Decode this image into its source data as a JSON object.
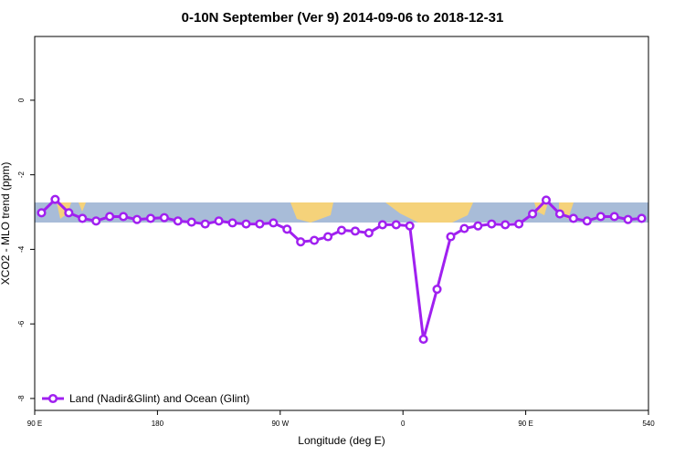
{
  "chart_data": {
    "type": "line",
    "title": "0-10N September (Ver 9)   2014-09-06 to 2018-12-31",
    "x_label": "Longitude (deg E)",
    "y_label": "XCO2 - MLO trend (ppm)",
    "x": [
      95,
      105,
      115,
      125,
      135,
      145,
      155,
      165,
      175,
      185,
      195,
      205,
      215,
      225,
      235,
      245,
      255,
      265,
      275,
      285,
      295,
      305,
      315,
      325,
      335,
      345,
      355,
      365,
      375,
      385,
      395,
      405,
      415,
      425,
      435,
      445,
      455,
      465,
      475,
      485,
      495,
      505,
      515,
      525,
      535
    ],
    "series": [
      {
        "name": "Land (Nadir&Glint) and Ocean (Glint)",
        "color": "#a020f0",
        "values": [
          -3.02,
          -2.66,
          -3.02,
          -3.17,
          -3.24,
          -3.12,
          -3.12,
          -3.2,
          -3.17,
          -3.15,
          -3.24,
          -3.27,
          -3.32,
          -3.24,
          -3.29,
          -3.32,
          -3.32,
          -3.29,
          -3.46,
          -3.8,
          -3.76,
          -3.66,
          -3.49,
          -3.51,
          -3.56,
          -3.34,
          -3.34,
          -3.37,
          -6.41,
          -5.07,
          -3.66,
          -3.44,
          -3.37,
          -3.32,
          -3.34,
          -3.32,
          -3.05,
          -2.68,
          -3.05,
          -3.17,
          -3.24,
          -3.12,
          -3.12,
          -3.2,
          -3.17
        ]
      }
    ],
    "xlim": [
      90,
      540
    ],
    "xticks": [
      {
        "value": 90,
        "label": "90 E"
      },
      180,
      {
        "value": 270,
        "label": "90 W"
      },
      {
        "value": 360,
        "label": "0"
      },
      {
        "value": 450,
        "label": "90 E"
      },
      540
    ],
    "ylim": [
      -8.32,
      1.71
    ],
    "yticks": [
      0,
      -2,
      -4,
      -6,
      -8
    ],
    "legend": "bottom-left"
  }
}
